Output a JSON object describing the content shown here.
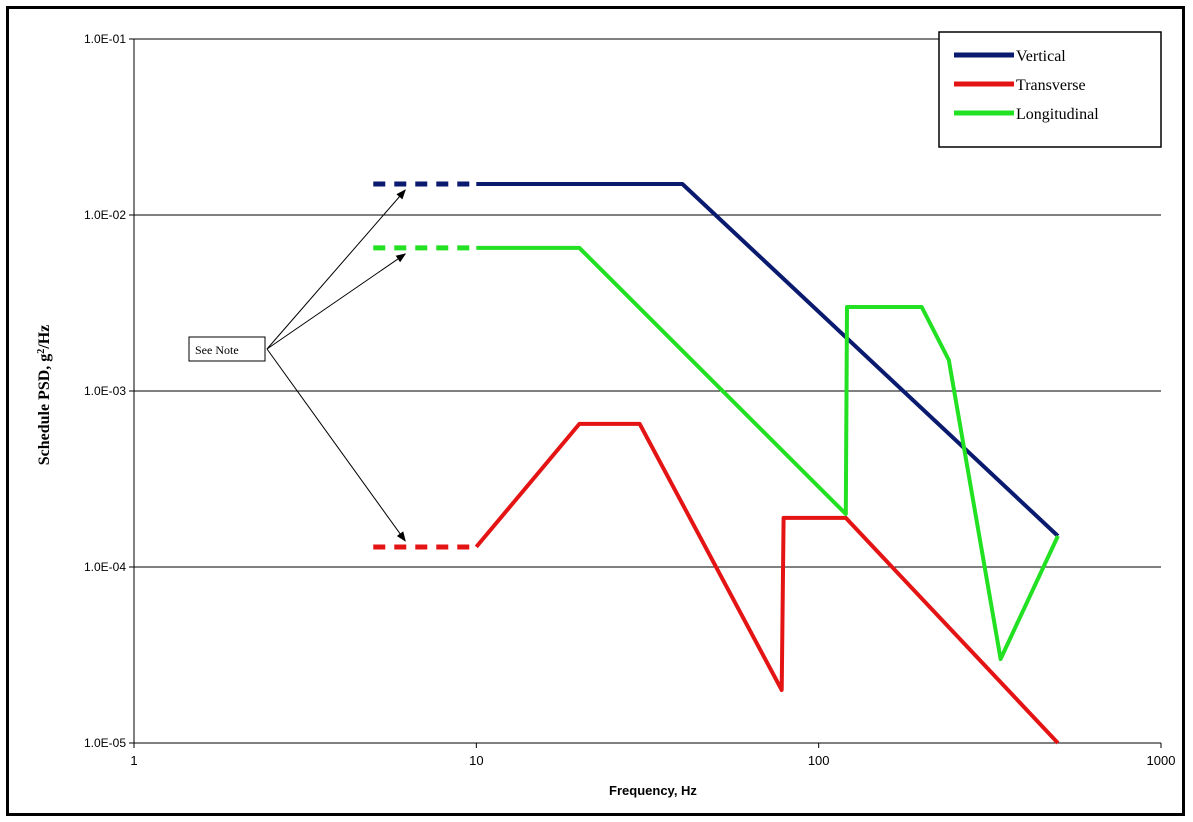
{
  "chart_data": {
    "type": "line",
    "xlabel": "Frequency, Hz",
    "ylabel_main": "Schedule PSD, g",
    "ylabel_sup": "2",
    "ylabel_tail": "/Hz",
    "x_scale": "log",
    "y_scale": "log",
    "xlim": [
      1,
      1000
    ],
    "ylim": [
      1e-05,
      0.1
    ],
    "x_ticks": [
      1,
      10,
      100,
      1000
    ],
    "x_tick_labels": [
      "1",
      "10",
      "100",
      "1000"
    ],
    "y_ticks": [
      1e-05,
      0.0001,
      0.001,
      0.01,
      0.1
    ],
    "y_tick_labels": [
      "1.0E-05",
      "1.0E-04",
      "1.0E-03",
      "1.0E-02",
      "1.0E-01"
    ],
    "grid": "horizontal",
    "legend_position": "top-right",
    "series": [
      {
        "name": "Vertical",
        "color": "#0a1a6e",
        "dashed_extension": [
          [
            5,
            0.015
          ],
          [
            10,
            0.015
          ]
        ],
        "points": [
          [
            10,
            0.015
          ],
          [
            40,
            0.015
          ],
          [
            500,
            0.00015
          ]
        ]
      },
      {
        "name": "Transverse",
        "color": "#e41414",
        "dashed_extension": [
          [
            5,
            0.00013
          ],
          [
            10,
            0.00013
          ]
        ],
        "points": [
          [
            10,
            0.00013
          ],
          [
            20,
            0.00065
          ],
          [
            30,
            0.00065
          ],
          [
            78,
            2e-05
          ],
          [
            79,
            0.00019
          ],
          [
            120,
            0.00019
          ],
          [
            500,
            1e-05
          ]
        ]
      },
      {
        "name": "Longitudinal",
        "color": "#22e022",
        "dashed_extension": [
          [
            5,
            0.0065
          ],
          [
            10,
            0.0065
          ]
        ],
        "points": [
          [
            10,
            0.0065
          ],
          [
            20,
            0.0065
          ],
          [
            120,
            0.0002
          ],
          [
            121,
            0.003
          ],
          [
            200,
            0.003
          ],
          [
            240,
            0.0015
          ],
          [
            340,
            3e-05
          ],
          [
            500,
            0.00015
          ]
        ]
      }
    ],
    "annotation": {
      "text": "See Note",
      "arrow_targets": [
        [
          6.2,
          0.015
        ],
        [
          6.2,
          0.0065
        ],
        [
          6.2,
          0.00013
        ]
      ]
    }
  }
}
